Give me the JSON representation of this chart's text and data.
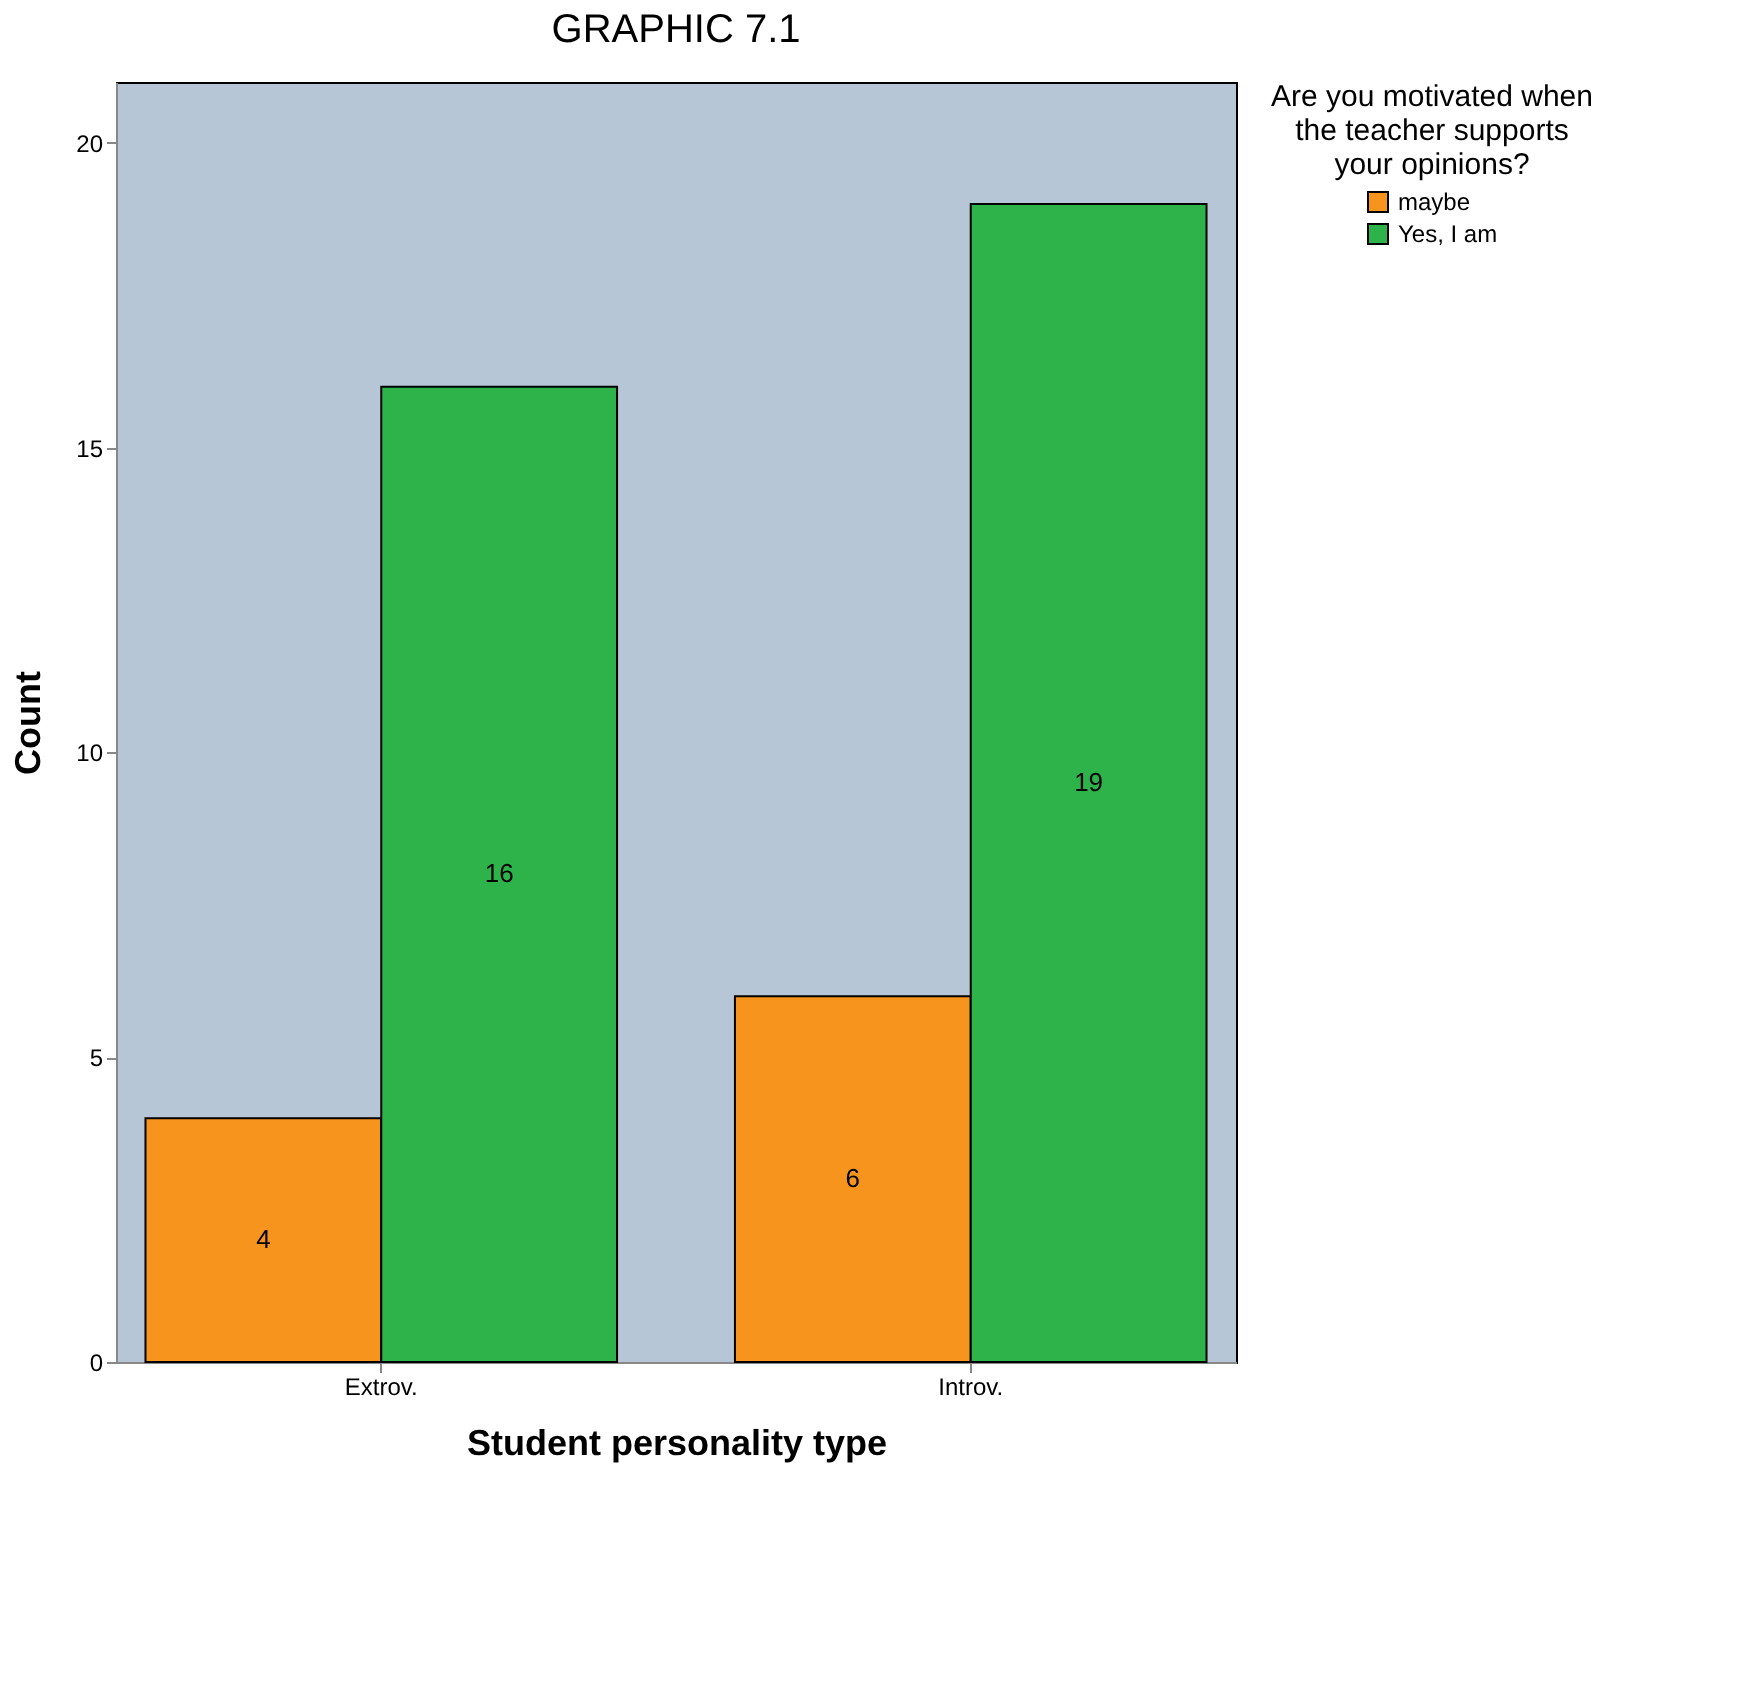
{
  "chart_data": {
    "type": "bar",
    "title": "GRAPHIC 7.1",
    "xlabel": "Student personality type",
    "ylabel": "Count",
    "legend_title": "Are you motivated when the teacher supports your opinions?",
    "categories": [
      "Extrov.",
      "Introv."
    ],
    "series": [
      {
        "name": "maybe",
        "color": "#f7941d",
        "values": [
          4,
          6
        ]
      },
      {
        "name": "Yes, I am",
        "color": "#2db34a",
        "values": [
          16,
          19
        ]
      }
    ],
    "ylim": [
      0,
      21
    ],
    "yticks": [
      0,
      5,
      10,
      15,
      20
    ],
    "grid": false,
    "legend": "top right",
    "data_labels": true
  }
}
